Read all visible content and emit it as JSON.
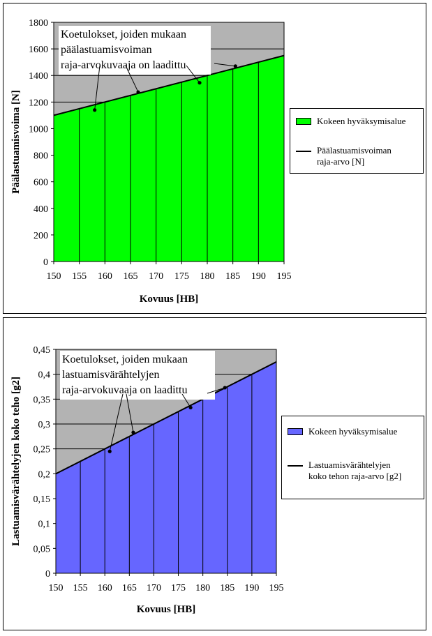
{
  "chart_data": [
    {
      "type": "area",
      "xlabel": "Kovuus [HB]",
      "ylabel": "Päälastuamisvoima [N]",
      "xlim": [
        150,
        195
      ],
      "ylim": [
        0,
        1800
      ],
      "xticks": [
        "150",
        "155",
        "160",
        "165",
        "170",
        "175",
        "180",
        "185",
        "190",
        "195"
      ],
      "yticks": [
        "0",
        "200",
        "400",
        "600",
        "800",
        "1000",
        "1200",
        "1400",
        "1600",
        "1800"
      ],
      "grid": "horizontal lines in upper region, vertical lines in filled area",
      "series": [
        {
          "name": "Kokeen hyväksymisalue",
          "kind": "area",
          "color": "#00ff00",
          "x": [
            150,
            195
          ],
          "y": [
            1100,
            1550
          ]
        },
        {
          "name": "Päälastuamisvoiman raja-arvo [N]",
          "kind": "line",
          "color": "#000000",
          "x": [
            150,
            195
          ],
          "y": [
            1100,
            1550
          ]
        }
      ],
      "points": {
        "x": [
          158,
          166.5,
          178.5,
          185.5
        ],
        "y": [
          1140,
          1275,
          1345,
          1470
        ]
      },
      "annotation": [
        "Koetulokset, joiden mukaan",
        "päälastuamisvoiman",
        "raja-arvokuvaaja on laadittu"
      ],
      "legend_position": "right"
    },
    {
      "type": "area",
      "xlabel": "Kovuus [HB]",
      "ylabel": "Lastuamisvärähtelyjen koko teho [g2]",
      "xlim": [
        150,
        195
      ],
      "ylim": [
        0,
        0.45
      ],
      "xticks": [
        "150",
        "155",
        "160",
        "165",
        "170",
        "175",
        "180",
        "185",
        "190",
        "195"
      ],
      "yticks": [
        "0",
        "0,05",
        "0,1",
        "0,15",
        "0,2",
        "0,25",
        "0,3",
        "0,35",
        "0,4",
        "0,45"
      ],
      "grid": "horizontal lines in upper region, vertical lines in filled area",
      "series": [
        {
          "name": "Kokeen hyväksymisalue",
          "kind": "area",
          "color": "#6666ff",
          "x": [
            150,
            195
          ],
          "y": [
            0.2,
            0.425
          ]
        },
        {
          "name": "Lastuamisvärähtelyjen koko tehon raja-arvo [g2]",
          "kind": "line",
          "color": "#000000",
          "x": [
            150,
            195
          ],
          "y": [
            0.2,
            0.425
          ]
        }
      ],
      "points": {
        "x": [
          161,
          165.8,
          177.5,
          184.5
        ],
        "y": [
          0.245,
          0.283,
          0.333,
          0.373
        ]
      },
      "annotation": [
        "Koetulokset, joiden mukaan",
        "lastuamisvärähtelyjen",
        "raja-arvokuvaaja on laadittu"
      ],
      "legend_position": "right"
    }
  ],
  "legend1": {
    "area_label": "Kokeen hyväksymisalue",
    "line_label_1": "Päälastuamisvoiman",
    "line_label_2": "raja-arvo [N]"
  },
  "legend2": {
    "area_label": "Kokeen hyväksymisalue",
    "line_label_1": "Lastuamisvärähtelyjen",
    "line_label_2": "koko tehon raja-arvo [g2]"
  }
}
